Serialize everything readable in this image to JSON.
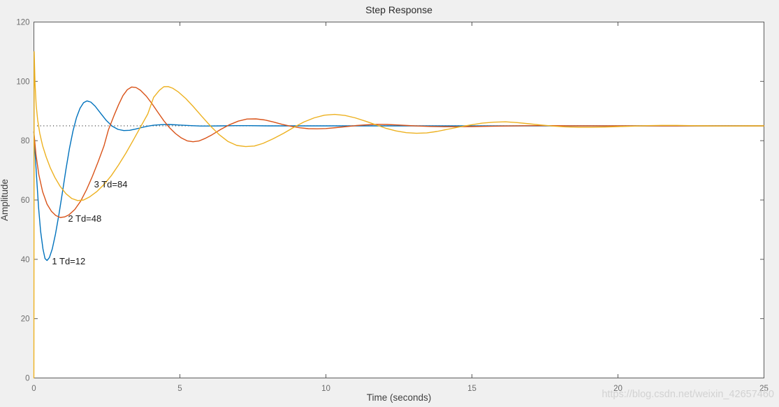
{
  "figure": {
    "background": "#f0f0f0",
    "plot_background": "#ffffff",
    "axis_color": "#5b5b5b",
    "tick_label_color": "#6d6d6d",
    "label_color": "#3f3f3f"
  },
  "watermark": {
    "text": "https://blog.csdn.net/weixin_42657460",
    "color": "#cdcdcd"
  },
  "chart_data": {
    "type": "line",
    "title": "Step Response",
    "xlabel": "Time (seconds)",
    "ylabel": "Amplitude",
    "xlim": [
      0,
      25
    ],
    "ylim": [
      0,
      120
    ],
    "x_ticks": [
      0,
      5,
      10,
      15,
      20,
      25
    ],
    "y_ticks": [
      0,
      20,
      40,
      60,
      80,
      100,
      120
    ],
    "grid": false,
    "legend_position": "none",
    "steady_state": {
      "value": 85,
      "style": "dotted",
      "color": "#1a1a1a"
    },
    "annotations": [
      {
        "label": "1 Td=12",
        "t": 0.62,
        "v": 39.4
      },
      {
        "label": "2 Td=48",
        "t": 1.17,
        "v": 53.8
      },
      {
        "label": "3 Td=84",
        "t": 2.06,
        "v": 65.3
      }
    ],
    "series": [
      {
        "name": "1 Td=12",
        "color": "#0072BD",
        "points": [
          [
            0,
            83
          ],
          [
            0.04,
            76
          ],
          [
            0.1,
            66.5
          ],
          [
            0.16,
            57.5
          ],
          [
            0.23,
            49.5
          ],
          [
            0.31,
            43.5
          ],
          [
            0.38,
            40.3
          ],
          [
            0.45,
            39.6
          ],
          [
            0.53,
            40.6
          ],
          [
            0.63,
            43.5
          ],
          [
            0.74,
            48.5
          ],
          [
            0.86,
            55.2
          ],
          [
            0.98,
            62.8
          ],
          [
            1.1,
            70.5
          ],
          [
            1.22,
            77.5
          ],
          [
            1.34,
            83.3
          ],
          [
            1.46,
            87.8
          ],
          [
            1.58,
            90.9
          ],
          [
            1.7,
            92.8
          ],
          [
            1.82,
            93.4
          ],
          [
            1.95,
            93.0
          ],
          [
            2.1,
            91.6
          ],
          [
            2.28,
            89.3
          ],
          [
            2.48,
            86.8
          ],
          [
            2.68,
            84.9
          ],
          [
            2.88,
            83.8
          ],
          [
            3.08,
            83.4
          ],
          [
            3.28,
            83.5
          ],
          [
            3.48,
            83.9
          ],
          [
            3.68,
            84.4
          ],
          [
            3.88,
            84.85
          ],
          [
            4.1,
            85.2
          ],
          [
            4.35,
            85.4
          ],
          [
            4.6,
            85.45
          ],
          [
            4.85,
            85.35
          ],
          [
            5.1,
            85.2
          ],
          [
            5.4,
            85.05
          ],
          [
            5.7,
            84.95
          ],
          [
            6.0,
            84.95
          ],
          [
            6.4,
            85.0
          ],
          [
            6.9,
            85.05
          ],
          [
            7.4,
            85.05
          ],
          [
            8.0,
            85.0
          ],
          [
            9.0,
            85.0
          ],
          [
            10,
            85
          ],
          [
            12,
            85
          ],
          [
            14,
            85
          ],
          [
            17,
            85
          ],
          [
            20,
            85
          ],
          [
            25,
            85
          ]
        ]
      },
      {
        "name": "2 Td=48",
        "color": "#D95319",
        "points": [
          [
            0,
            83
          ],
          [
            0.07,
            75.5
          ],
          [
            0.17,
            68.5
          ],
          [
            0.3,
            62.8
          ],
          [
            0.45,
            58.6
          ],
          [
            0.6,
            56.2
          ],
          [
            0.75,
            54.8
          ],
          [
            0.9,
            54.1
          ],
          [
            1.05,
            54.3
          ],
          [
            1.2,
            55.0
          ],
          [
            1.4,
            56.8
          ],
          [
            1.6,
            59.6
          ],
          [
            1.8,
            63.4
          ],
          [
            2.0,
            67.9
          ],
          [
            2.2,
            72.9
          ],
          [
            2.4,
            78.2
          ],
          [
            2.55,
            83.6
          ],
          [
            2.75,
            88.6
          ],
          [
            2.9,
            92.1
          ],
          [
            3.05,
            95.2
          ],
          [
            3.2,
            97.2
          ],
          [
            3.35,
            98.1
          ],
          [
            3.5,
            97.9
          ],
          [
            3.65,
            97.0
          ],
          [
            3.85,
            95.0
          ],
          [
            4.05,
            92.4
          ],
          [
            4.25,
            89.5
          ],
          [
            4.45,
            86.7
          ],
          [
            4.65,
            84.3
          ],
          [
            4.85,
            82.4
          ],
          [
            5.05,
            80.9
          ],
          [
            5.25,
            79.95
          ],
          [
            5.45,
            79.65
          ],
          [
            5.65,
            79.9
          ],
          [
            5.85,
            80.7
          ],
          [
            6.1,
            82.0
          ],
          [
            6.4,
            83.8
          ],
          [
            6.7,
            85.4
          ],
          [
            7.0,
            86.6
          ],
          [
            7.3,
            87.3
          ],
          [
            7.6,
            87.35
          ],
          [
            7.9,
            87.0
          ],
          [
            8.2,
            86.3
          ],
          [
            8.5,
            85.5
          ],
          [
            8.8,
            84.85
          ],
          [
            9.1,
            84.35
          ],
          [
            9.4,
            84.05
          ],
          [
            9.7,
            84.0
          ],
          [
            10.0,
            84.1
          ],
          [
            10.35,
            84.4
          ],
          [
            10.7,
            84.75
          ],
          [
            11.05,
            85.1
          ],
          [
            11.4,
            85.35
          ],
          [
            11.75,
            85.5
          ],
          [
            12.1,
            85.45
          ],
          [
            12.45,
            85.3
          ],
          [
            12.8,
            85.1
          ],
          [
            13.15,
            84.95
          ],
          [
            13.55,
            84.8
          ],
          [
            13.95,
            84.72
          ],
          [
            14.45,
            84.7
          ],
          [
            15.0,
            84.75
          ],
          [
            15.6,
            84.85
          ],
          [
            16.2,
            84.95
          ],
          [
            17.0,
            85.05
          ],
          [
            17.8,
            85.05
          ],
          [
            18.6,
            85.0
          ],
          [
            19.6,
            85.0
          ],
          [
            21,
            85
          ],
          [
            23,
            85
          ],
          [
            25,
            85
          ]
        ]
      },
      {
        "name": "3 Td=84",
        "color": "#EDB120",
        "points": [
          [
            0,
            0
          ],
          [
            0.01,
            110
          ],
          [
            0.04,
            99
          ],
          [
            0.08,
            92
          ],
          [
            0.13,
            87
          ],
          [
            0.2,
            82.5
          ],
          [
            0.3,
            78.3
          ],
          [
            0.42,
            74.5
          ],
          [
            0.56,
            70.9
          ],
          [
            0.72,
            67.6
          ],
          [
            0.9,
            64.6
          ],
          [
            1.1,
            62.1
          ],
          [
            1.3,
            60.5
          ],
          [
            1.5,
            59.8
          ],
          [
            1.7,
            60.0
          ],
          [
            1.9,
            61.0
          ],
          [
            2.15,
            62.8
          ],
          [
            2.4,
            65.2
          ],
          [
            2.65,
            68.2
          ],
          [
            2.9,
            71.8
          ],
          [
            3.15,
            75.8
          ],
          [
            3.4,
            80.1
          ],
          [
            3.65,
            84.6
          ],
          [
            3.9,
            89.0
          ],
          [
            4.1,
            94.6
          ],
          [
            4.3,
            97.0
          ],
          [
            4.45,
            98.2
          ],
          [
            4.6,
            98.25
          ],
          [
            4.75,
            97.7
          ],
          [
            4.95,
            96.4
          ],
          [
            5.2,
            94.2
          ],
          [
            5.45,
            91.6
          ],
          [
            5.75,
            88.2
          ],
          [
            6.05,
            84.9
          ],
          [
            6.35,
            82.0
          ],
          [
            6.65,
            79.7
          ],
          [
            6.95,
            78.4
          ],
          [
            7.25,
            78.0
          ],
          [
            7.55,
            78.2
          ],
          [
            7.85,
            79.1
          ],
          [
            8.2,
            80.7
          ],
          [
            8.55,
            82.5
          ],
          [
            8.9,
            84.5
          ],
          [
            9.25,
            86.3
          ],
          [
            9.6,
            87.7
          ],
          [
            9.95,
            88.6
          ],
          [
            10.3,
            88.85
          ],
          [
            10.65,
            88.5
          ],
          [
            11.0,
            87.7
          ],
          [
            11.35,
            86.6
          ],
          [
            11.7,
            85.4
          ],
          [
            12.05,
            84.2
          ],
          [
            12.4,
            83.3
          ],
          [
            12.75,
            82.7
          ],
          [
            13.1,
            82.5
          ],
          [
            13.45,
            82.6
          ],
          [
            13.8,
            83.1
          ],
          [
            14.15,
            83.8
          ],
          [
            14.55,
            84.6
          ],
          [
            14.95,
            85.3
          ],
          [
            15.35,
            85.9
          ],
          [
            15.75,
            86.25
          ],
          [
            16.15,
            86.35
          ],
          [
            16.55,
            86.1
          ],
          [
            16.95,
            85.7
          ],
          [
            17.35,
            85.3
          ],
          [
            17.75,
            84.95
          ],
          [
            18.2,
            84.65
          ],
          [
            18.65,
            84.5
          ],
          [
            19.1,
            84.5
          ],
          [
            19.55,
            84.6
          ],
          [
            20.0,
            84.75
          ],
          [
            20.5,
            84.9
          ],
          [
            21.0,
            85.05
          ],
          [
            21.5,
            85.15
          ],
          [
            22.0,
            85.15
          ],
          [
            22.5,
            85.05
          ],
          [
            23.1,
            85.0
          ],
          [
            23.8,
            84.95
          ],
          [
            24.5,
            85.0
          ],
          [
            25,
            85
          ]
        ]
      }
    ]
  }
}
